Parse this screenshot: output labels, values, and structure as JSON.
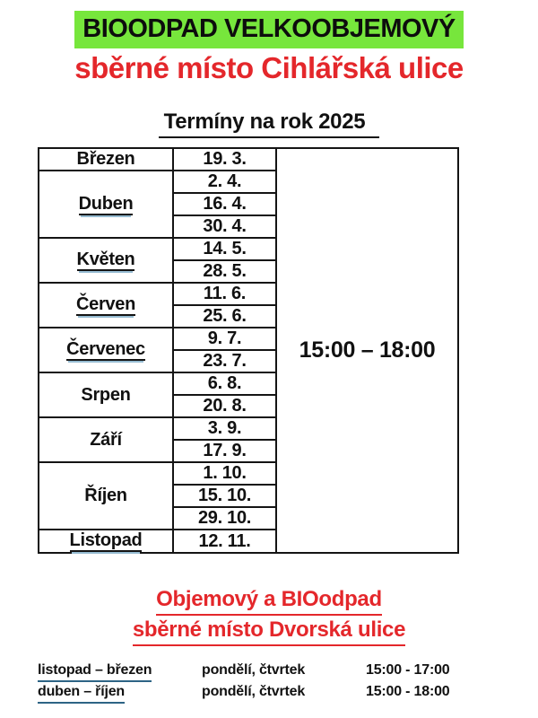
{
  "page": {
    "title": "BIOODPAD VELKOOBJEMOVÝ",
    "subtitle": "sběrné místo Cihlářská ulice",
    "table_heading": "Termíny na rok 2025"
  },
  "colors": {
    "highlight_green": "#77e63c",
    "accent_red": "#e4272b",
    "table_border": "#141414",
    "range_underline_blue": "#2d6485"
  },
  "schedule": {
    "time_window": "15:00 – 18:00",
    "months": [
      {
        "name": "Březen",
        "underlined": false,
        "dates": [
          "19. 3."
        ]
      },
      {
        "name": "Duben",
        "underlined": true,
        "dates": [
          "2. 4.",
          "16. 4.",
          "30. 4."
        ]
      },
      {
        "name": "Květen",
        "underlined": true,
        "dates": [
          "14. 5.",
          "28. 5."
        ]
      },
      {
        "name": "Červen",
        "underlined": true,
        "dates": [
          "11. 6.",
          "25. 6."
        ]
      },
      {
        "name": "Červenec",
        "underlined": true,
        "dates": [
          "9. 7.",
          "23. 7."
        ]
      },
      {
        "name": "Srpen",
        "underlined": false,
        "dates": [
          "6. 8.",
          "20. 8."
        ]
      },
      {
        "name": "Září",
        "underlined": false,
        "dates": [
          "3. 9.",
          "17. 9."
        ]
      },
      {
        "name": "Říjen",
        "underlined": false,
        "dates": [
          "1. 10.",
          "15. 10.",
          "29. 10."
        ]
      },
      {
        "name": "Listopad",
        "underlined": true,
        "dates": [
          "12. 11."
        ]
      }
    ]
  },
  "footer": {
    "heading_line1_part1": "Objemový a ",
    "heading_line1_part2": "BIOodpad",
    "heading_line2": "sběrné místo Dvorská ulice",
    "rows": [
      {
        "range": "listopad – březen",
        "days": "pondělí, čtvrtek",
        "time": "15:00 - 17:00"
      },
      {
        "range": "duben – říjen",
        "days": "pondělí, čtvrtek",
        "time": "15:00 - 18:00"
      }
    ]
  }
}
